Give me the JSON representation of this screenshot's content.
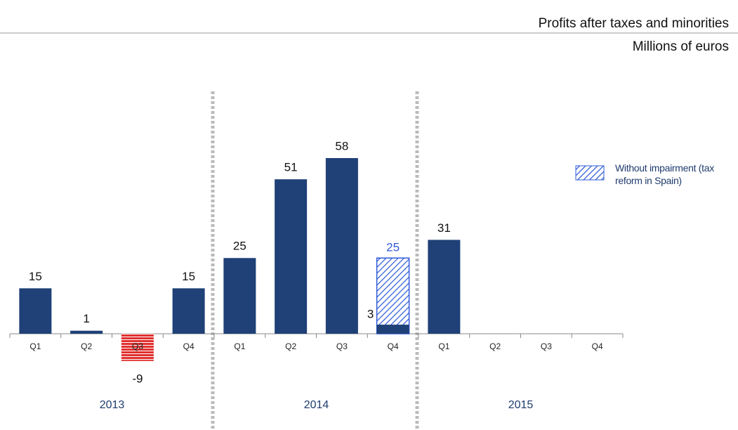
{
  "chart_data": {
    "type": "bar",
    "title": "Profits after taxes and minorities",
    "subtitle": "Millions of euros",
    "categories": [
      "Q1",
      "Q2",
      "Q3",
      "Q4",
      "Q1",
      "Q2",
      "Q3",
      "Q4",
      "Q1",
      "Q2",
      "Q3",
      "Q4"
    ],
    "groups": [
      {
        "label": "2013",
        "size": 4
      },
      {
        "label": "2014",
        "size": 4
      },
      {
        "label": "2015",
        "size": 4
      }
    ],
    "series": [
      {
        "color": "#1f4177",
        "negative_color": "#e0312f",
        "values": [
          15,
          1,
          -9,
          15,
          25,
          51,
          58,
          3,
          31,
          null,
          null,
          null
        ]
      },
      {
        "name": "Without impairment (tax reform in Spain)",
        "color": "#2f5bd8",
        "pattern": "hatch",
        "values": [
          null,
          null,
          null,
          null,
          null,
          null,
          null,
          25,
          null,
          null,
          null,
          null
        ]
      }
    ]
  }
}
